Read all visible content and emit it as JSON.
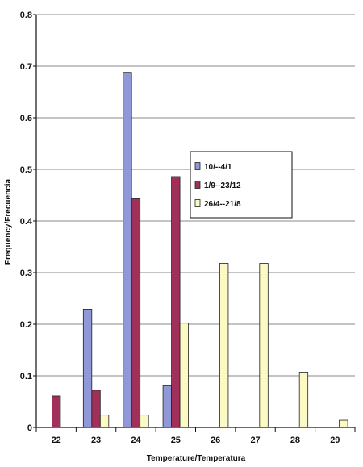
{
  "chart_data": {
    "type": "bar",
    "title": "",
    "xlabel": "Temperature/Temperatura",
    "ylabel": "Frequency/Frecuencia",
    "ylim": [
      0,
      0.8
    ],
    "yticks": [
      "0",
      "0.1",
      "0.2",
      "0.3",
      "0.4",
      "0.5",
      "0.6",
      "0.7",
      "0.8"
    ],
    "categories": [
      "22",
      "23",
      "24",
      "25",
      "26",
      "27",
      "28",
      "29"
    ],
    "grid": true,
    "legend_position": "center-right",
    "series": [
      {
        "name": "10/--4/1",
        "color": "#9098d8",
        "values": [
          0,
          0.229,
          0.688,
          0.082,
          0,
          0,
          0,
          0
        ]
      },
      {
        "name": "1/9--23/12",
        "color": "#a0305a",
        "values": [
          0.061,
          0.072,
          0.443,
          0.486,
          0,
          0,
          0,
          0
        ]
      },
      {
        "name": "26/4--21/8",
        "color": "#fbf9c4",
        "values": [
          0,
          0.024,
          0.024,
          0.202,
          0.318,
          0.318,
          0.107,
          0.014
        ]
      }
    ]
  }
}
